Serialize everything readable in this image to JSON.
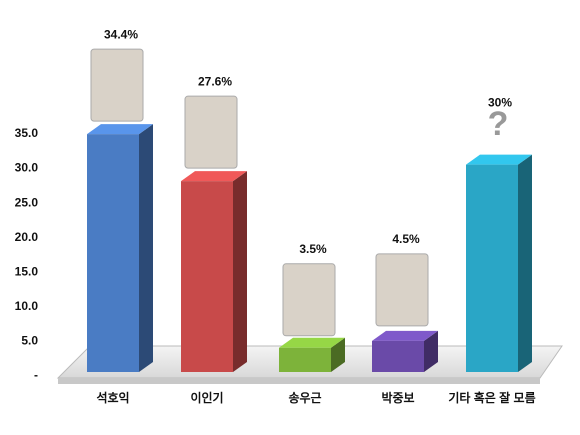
{
  "chart_data": {
    "type": "bar3d",
    "categories": [
      "석호익",
      "이인기",
      "송우근",
      "박중보",
      "기타 혹은 잘 모름"
    ],
    "values": [
      34.4,
      27.6,
      3.5,
      4.5,
      30
    ],
    "value_labels": [
      "34.4%",
      "27.6%",
      "3.5%",
      "4.5%",
      "30%"
    ],
    "colors": [
      "#4a7cc4",
      "#c84a4a",
      "#7db33a",
      "#6a4aa8",
      "#2aa6c6"
    ],
    "annotation": "?",
    "ylim": [
      0,
      35
    ],
    "yticks": [
      {
        "value": 0,
        "label": "-"
      },
      {
        "value": 5,
        "label": "5.0"
      },
      {
        "value": 10,
        "label": "10.0"
      },
      {
        "value": 15,
        "label": "15.0"
      },
      {
        "value": 20,
        "label": "20.0"
      },
      {
        "value": 25,
        "label": "25.0"
      },
      {
        "value": 30,
        "label": "30.0"
      },
      {
        "value": 35,
        "label": "35.0"
      }
    ]
  }
}
